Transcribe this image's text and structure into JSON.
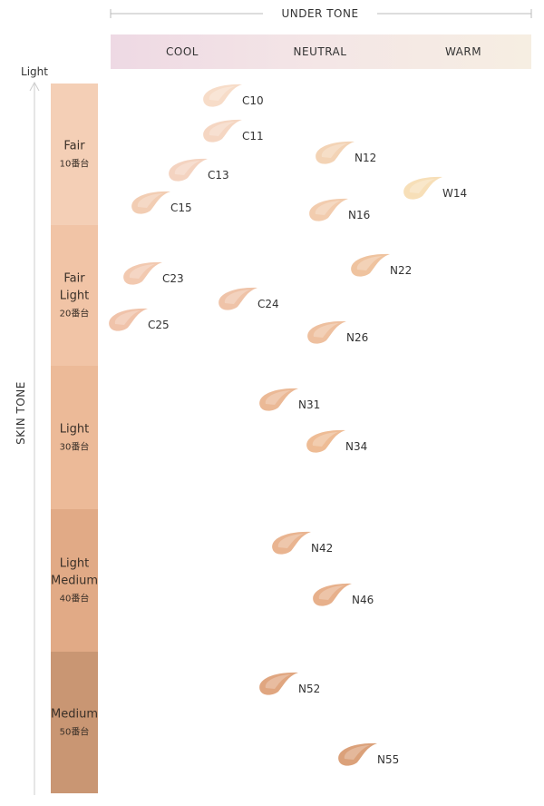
{
  "header": {
    "title": "UNDER TONE",
    "columns": [
      "COOL",
      "NEUTRAL",
      "WARM"
    ]
  },
  "axis": {
    "label": "SKIN TONE",
    "top": "Light"
  },
  "bands": [
    {
      "lines": [
        "Fair",
        "10番台"
      ],
      "color": "#f4cfb6"
    },
    {
      "lines": [
        "Fair",
        "Light",
        "20番台"
      ],
      "color": "#f1c4a6"
    },
    {
      "lines": [
        "Light",
        "30番台"
      ],
      "color": "#ecba98"
    },
    {
      "lines": [
        "Light",
        "Medium",
        "40番台"
      ],
      "color": "#e1aa86"
    },
    {
      "lines": [
        "Medium",
        "50番台"
      ],
      "color": "#c99673"
    }
  ],
  "swatches": [
    {
      "label": "C10",
      "color": "#f7dcc8"
    },
    {
      "label": "C11",
      "color": "#f5d6c2"
    },
    {
      "label": "C13",
      "color": "#f4d3c0"
    },
    {
      "label": "C15",
      "color": "#f2cdb3"
    },
    {
      "label": "N12",
      "color": "#f3d3b5"
    },
    {
      "label": "W14",
      "color": "#f7dfb8"
    },
    {
      "label": "N16",
      "color": "#f2ccae"
    },
    {
      "label": "C23",
      "color": "#f2c9b0"
    },
    {
      "label": "N22",
      "color": "#efc39f"
    },
    {
      "label": "C24",
      "color": "#efc3a8"
    },
    {
      "label": "C25",
      "color": "#f0c3aa"
    },
    {
      "label": "N26",
      "color": "#eec09f"
    },
    {
      "label": "N31",
      "color": "#ebb996"
    },
    {
      "label": "N34",
      "color": "#eebc95"
    },
    {
      "label": "N42",
      "color": "#e9b490"
    },
    {
      "label": "N46",
      "color": "#e7b08b"
    },
    {
      "label": "N52",
      "color": "#e0a680"
    },
    {
      "label": "N55",
      "color": "#dba17a"
    }
  ]
}
